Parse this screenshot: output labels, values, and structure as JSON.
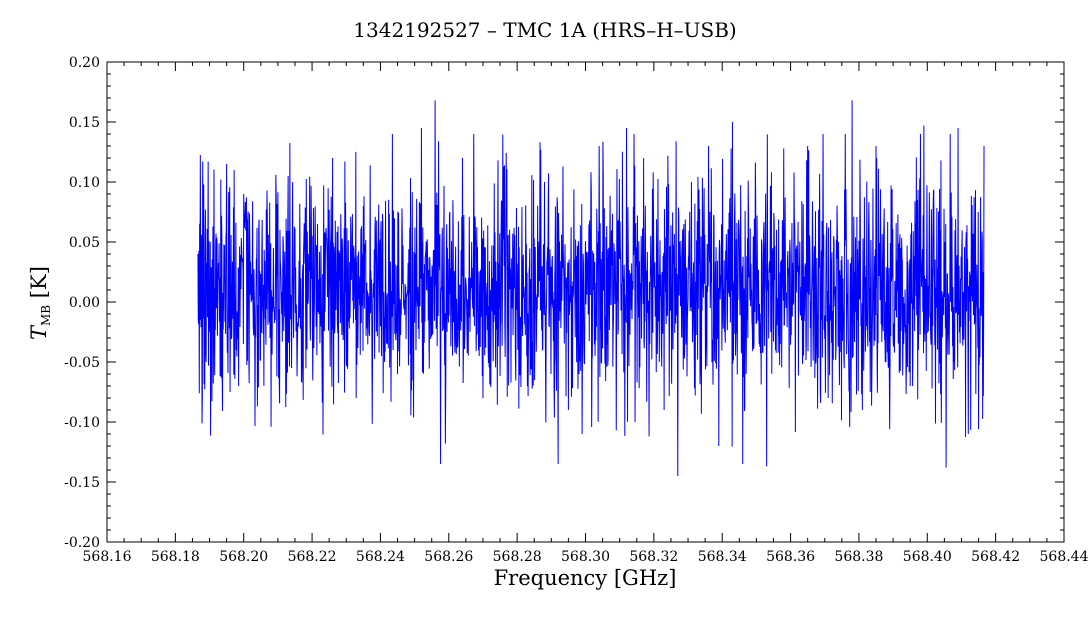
{
  "chart_data": {
    "type": "line",
    "title": "1342192527 – TMC 1A (HRS–H–USB)",
    "xlabel": "Frequency [GHz]",
    "ylabel": {
      "symbol": "T",
      "subscript": "MB",
      "unit": "[K]"
    },
    "xlim": [
      568.16,
      568.44
    ],
    "ylim": [
      -0.2,
      0.2
    ],
    "xticks": [
      "568.16",
      "568.18",
      "568.20",
      "568.22",
      "568.24",
      "568.26",
      "568.28",
      "568.30",
      "568.32",
      "568.34",
      "568.36",
      "568.38",
      "568.40",
      "568.42",
      "568.44"
    ],
    "yticks": [
      "0.20",
      "0.15",
      "0.10",
      "0.05",
      "0.00",
      "-0.05",
      "-0.10",
      "-0.15",
      "-0.20"
    ],
    "grid": false,
    "series": [
      {
        "color": "#0000ff",
        "x_range": [
          568.1866,
          568.4166
        ],
        "points": [
          [
            568.1866,
            0.04
          ],
          [
            568.187,
            -0.076
          ],
          [
            568.1877,
            0.056
          ],
          [
            568.1883,
            0.098
          ],
          [
            568.189,
            -0.05
          ],
          [
            568.1902,
            0.05
          ],
          [
            568.1915,
            -0.061
          ],
          [
            568.1935,
            0.072
          ],
          [
            568.195,
            0.115
          ],
          [
            568.196,
            -0.075
          ],
          [
            568.1972,
            0.11
          ],
          [
            568.1985,
            -0.07
          ],
          [
            568.2,
            0.09
          ],
          [
            568.204,
            -0.087
          ],
          [
            568.208,
            -0.104
          ],
          [
            568.213,
            0.105
          ],
          [
            568.217,
            -0.067
          ],
          [
            568.223,
            -0.084
          ],
          [
            568.226,
            0.12
          ],
          [
            568.23,
            -0.05
          ],
          [
            568.237,
            0.114
          ],
          [
            568.245,
            -0.06
          ],
          [
            568.252,
            0.145
          ],
          [
            568.256,
            0.168
          ],
          [
            568.259,
            -0.118
          ],
          [
            568.264,
            0.12
          ],
          [
            568.27,
            -0.08
          ],
          [
            568.276,
            0.113
          ],
          [
            568.283,
            -0.07
          ],
          [
            568.288,
            0.1
          ],
          [
            568.295,
            -0.09
          ],
          [
            568.299,
            -0.11
          ],
          [
            568.304,
            0.13
          ],
          [
            568.309,
            -0.107
          ],
          [
            568.312,
            0.145
          ],
          [
            568.317,
            0.12
          ],
          [
            568.323,
            -0.09
          ],
          [
            568.327,
            -0.145
          ],
          [
            568.331,
            0.1
          ],
          [
            568.336,
            0.13
          ],
          [
            568.339,
            -0.12
          ],
          [
            568.343,
            0.15
          ],
          [
            568.347,
            -0.06
          ],
          [
            568.353,
            -0.137
          ],
          [
            568.358,
            0.128
          ],
          [
            568.365,
            0.13
          ],
          [
            568.371,
            -0.08
          ],
          [
            568.376,
            0.14
          ],
          [
            568.378,
            0.168
          ],
          [
            568.381,
            -0.09
          ],
          [
            568.385,
            0.13
          ],
          [
            568.389,
            -0.106
          ],
          [
            568.395,
            -0.07
          ],
          [
            568.399,
            0.147
          ],
          [
            568.404,
            0.118
          ],
          [
            568.4055,
            -0.138
          ],
          [
            568.409,
            0.145
          ],
          [
            568.412,
            -0.11
          ],
          [
            568.415,
            -0.106
          ],
          [
            568.4166,
            0.13
          ]
        ]
      }
    ],
    "noise_sigma_estimate": 0.045
  }
}
